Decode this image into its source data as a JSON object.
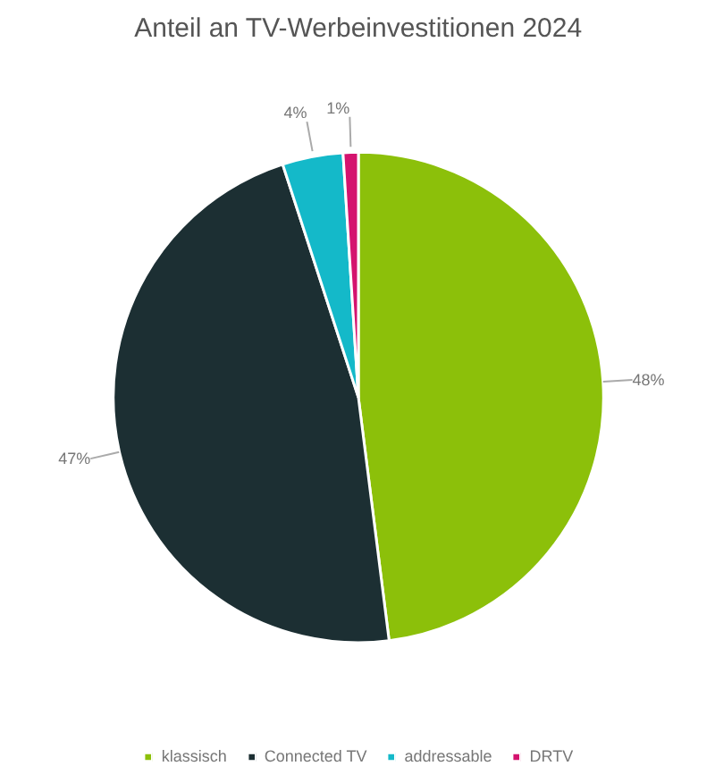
{
  "chart_data": {
    "type": "pie",
    "title": "Anteil an TV-Werbeinvestitionen 2024",
    "categories": [
      "klassisch",
      "Connected TV",
      "addressable",
      "DRTV"
    ],
    "values": [
      48,
      47,
      4,
      1
    ],
    "colors": [
      "#8cc00a",
      "#1c2f33",
      "#14b9c9",
      "#d4136e"
    ],
    "value_labels": [
      "48%",
      "47%",
      "4%",
      "1%"
    ],
    "legend": "bottom"
  }
}
